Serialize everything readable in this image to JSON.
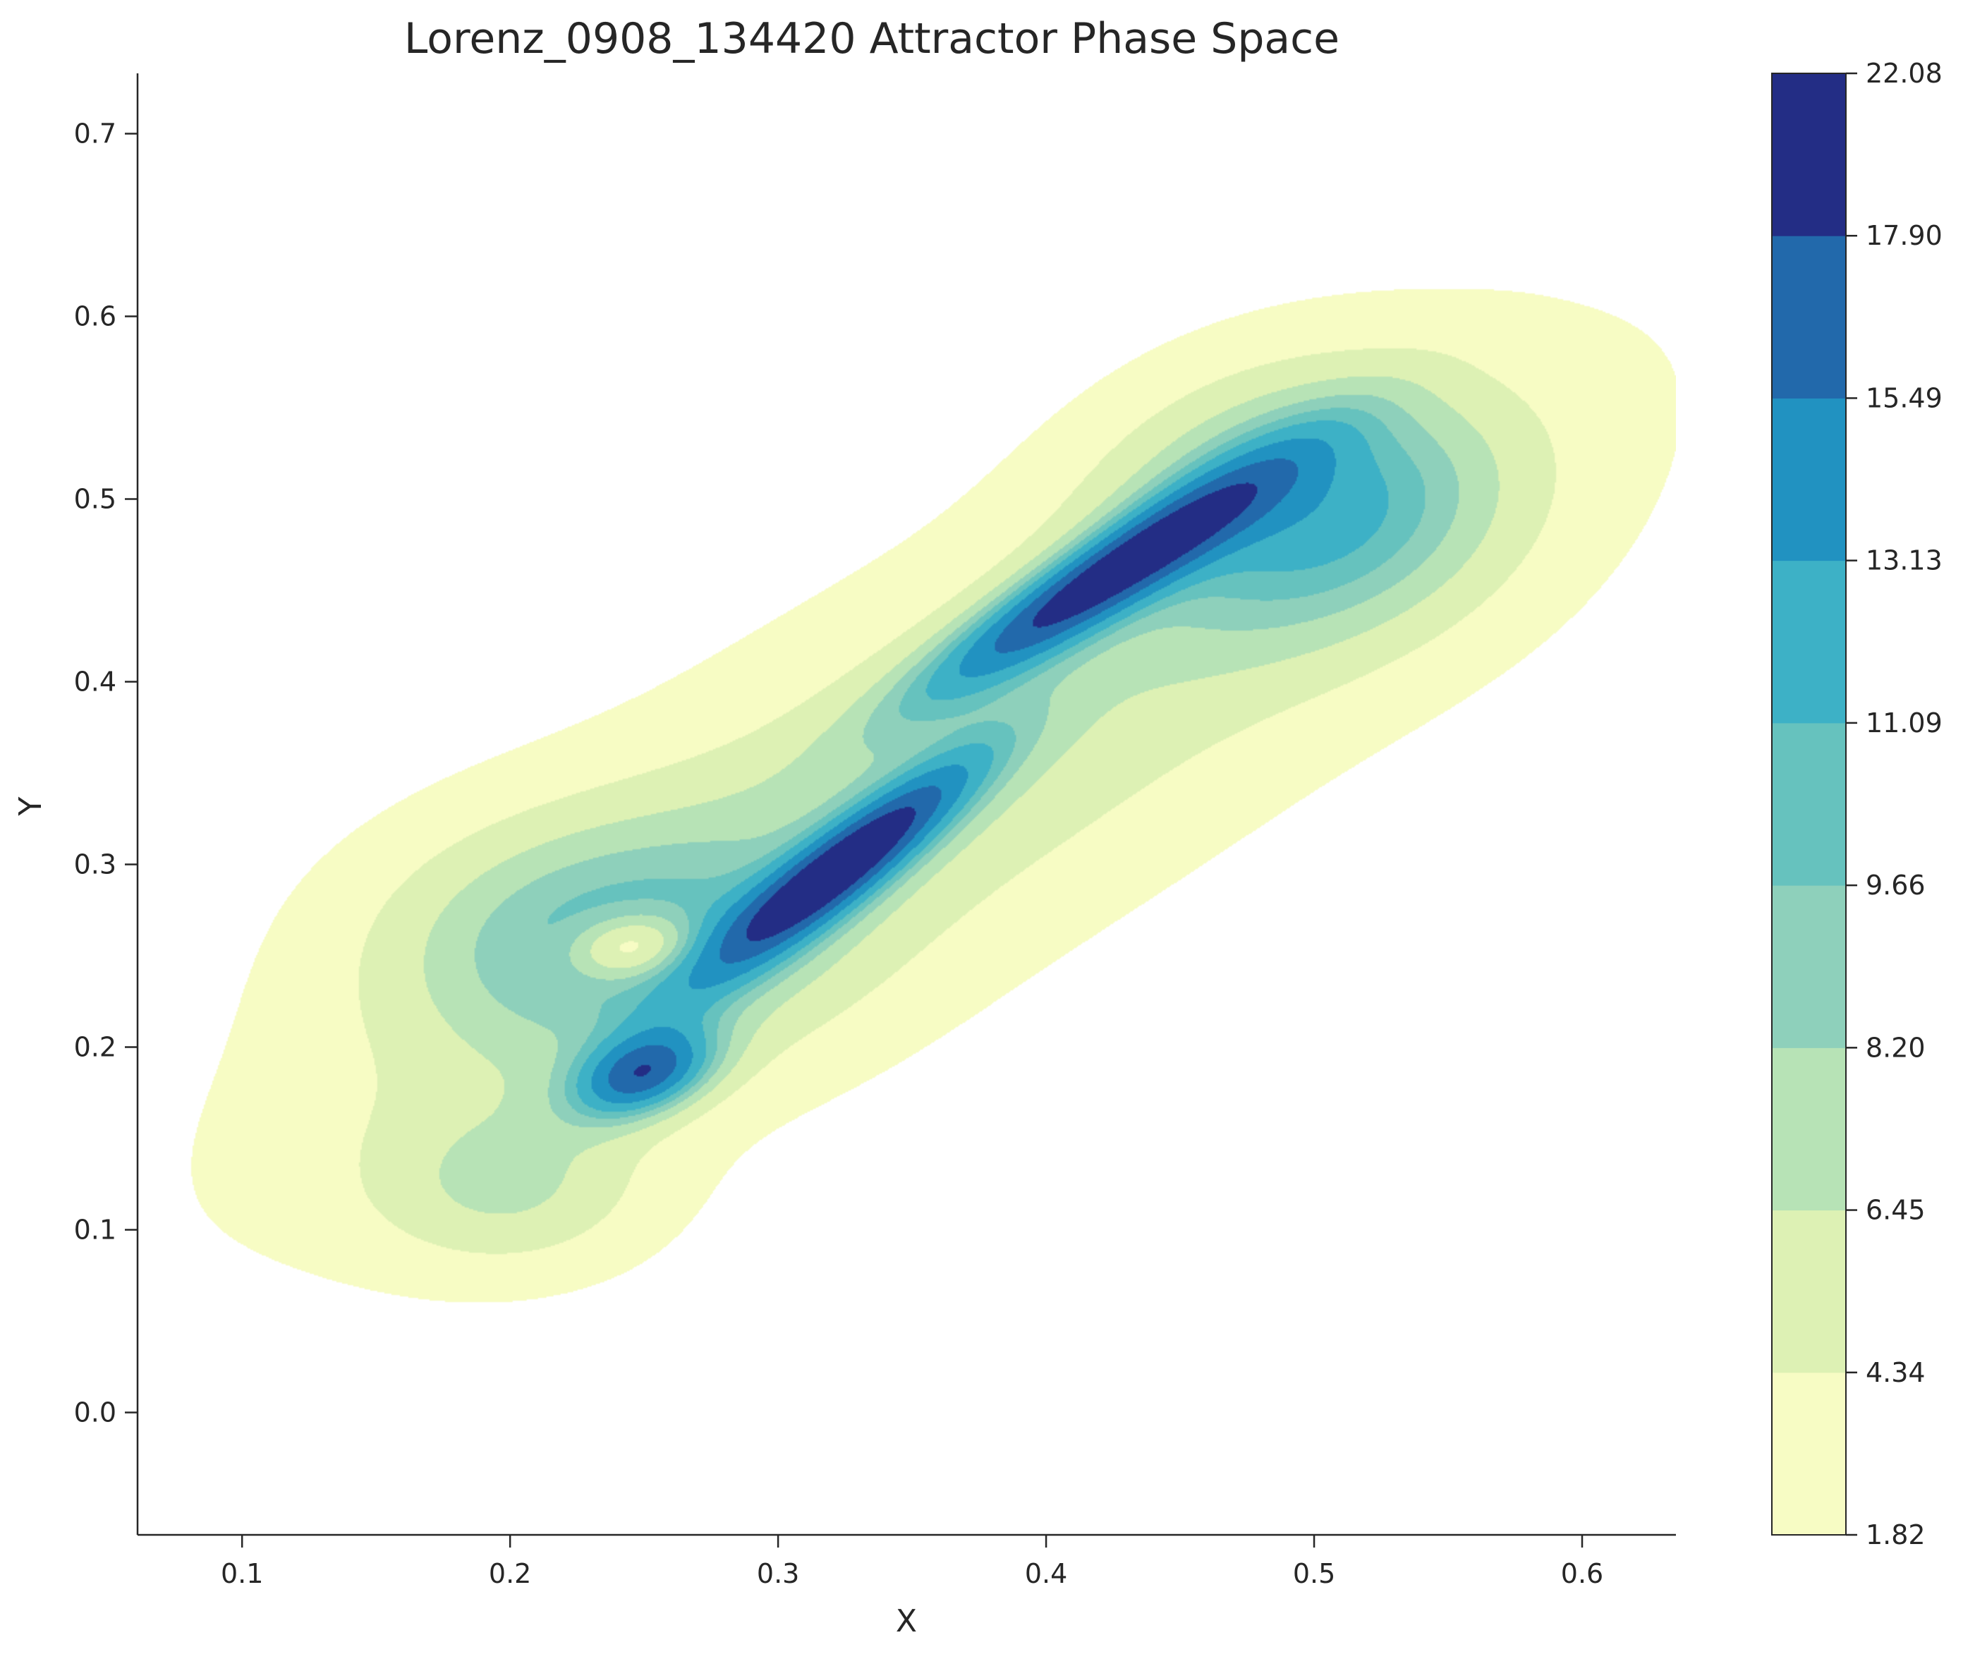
{
  "chart_data": {
    "type": "heatmap",
    "subtype": "kde-filled-contour",
    "title": "Lorenz_0908_134420 Attractor Phase Space",
    "xlabel": "X",
    "ylabel": "Y",
    "xlim": [
      0.061,
      0.635
    ],
    "ylim": [
      -0.067,
      0.733
    ],
    "xticks": [
      0.1,
      0.2,
      0.3,
      0.4,
      0.5,
      0.6
    ],
    "xtick_labels": [
      "0.1",
      "0.2",
      "0.3",
      "0.4",
      "0.5",
      "0.6"
    ],
    "yticks": [
      0.0,
      0.1,
      0.2,
      0.3,
      0.4,
      0.5,
      0.6,
      0.7
    ],
    "ytick_labels": [
      "0.0",
      "0.1",
      "0.2",
      "0.3",
      "0.4",
      "0.5",
      "0.6",
      "0.7"
    ],
    "grid": false,
    "colormap": "YlGnBu",
    "colorbar": {
      "levels": [
        1.82,
        4.34,
        6.45,
        8.2,
        9.66,
        11.09,
        13.13,
        15.49,
        17.9,
        22.08
      ],
      "tick_labels": [
        "1.82",
        "4.34",
        "6.45",
        "8.20",
        "9.66",
        "11.09",
        "13.13",
        "15.49",
        "17.90",
        "22.08"
      ],
      "band_colors": [
        "#f7fcc4",
        "#ddf1b4",
        "#b7e3b6",
        "#8ed0bb",
        "#66c2be",
        "#3db1c6",
        "#2192c1",
        "#2269ab",
        "#232d85"
      ]
    },
    "density_components": [
      {
        "cx": 0.25,
        "cy": 0.185,
        "sx": 0.021,
        "sy": 0.014,
        "angle_deg": 40,
        "weight": 12.0
      },
      {
        "cx": 0.325,
        "cy": 0.3,
        "sx": 0.055,
        "sy": 0.012,
        "angle_deg": 50,
        "weight": 14.5
      },
      {
        "cx": 0.42,
        "cy": 0.455,
        "sx": 0.065,
        "sy": 0.013,
        "angle_deg": 44,
        "weight": 14.0
      },
      {
        "cx": 0.5,
        "cy": 0.5,
        "sx": 0.055,
        "sy": 0.05,
        "angle_deg": 48,
        "weight": 8.5
      },
      {
        "cx": 0.23,
        "cy": 0.26,
        "sx": 0.06,
        "sy": 0.05,
        "angle_deg": 0,
        "weight": 6.0
      },
      {
        "cx": 0.2,
        "cy": 0.12,
        "sx": 0.04,
        "sy": 0.035,
        "angle_deg": 0,
        "weight": 5.0
      },
      {
        "cx": 0.355,
        "cy": 0.345,
        "sx": 0.22,
        "sy": 0.065,
        "angle_deg": 42,
        "weight": 6.5
      },
      {
        "cx": 0.245,
        "cy": 0.255,
        "sx": 0.016,
        "sy": 0.012,
        "angle_deg": 20,
        "weight": -7.0
      }
    ]
  }
}
